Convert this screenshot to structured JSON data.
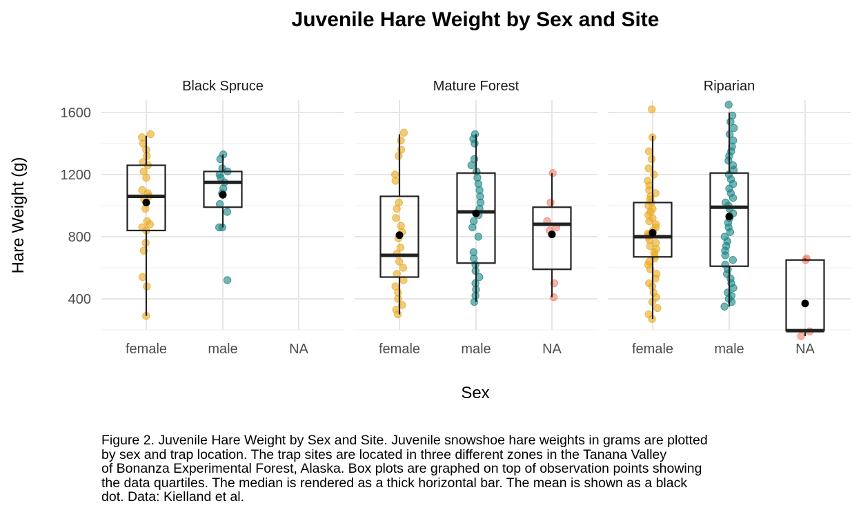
{
  "chart_data": {
    "type": "box",
    "title": "Juvenile Hare Weight by Sex and Site",
    "xlabel": "Sex",
    "ylabel": "Hare Weight (g)",
    "ylim": [
      200,
      1680
    ],
    "y_ticks": [
      400,
      800,
      1200,
      1600
    ],
    "categories": [
      "female",
      "male",
      "NA"
    ],
    "grid": true,
    "colors": {
      "female": "#E9A91F",
      "male": "#1A8484",
      "NA": "#F0806A",
      "box": "#222222",
      "mean": "#000000",
      "grid": "#E6E6E6"
    },
    "facets": [
      {
        "name": "Black Spruce",
        "groups": [
          {
            "sex": "female",
            "min": 290,
            "q1": 840,
            "median": 1060,
            "q3": 1260,
            "max": 1450,
            "mean": 1020,
            "points": [
              290,
              480,
              540,
              710,
              760,
              840,
              860,
              880,
              900,
              980,
              1040,
              1060,
              1080,
              1100,
              1180,
              1220,
              1260,
              1280,
              1320,
              1360,
              1400,
              1440,
              1460
            ]
          },
          {
            "sex": "male",
            "min": 860,
            "q1": 990,
            "median": 1150,
            "q3": 1220,
            "max": 1330,
            "mean": 1070,
            "points": [
              520,
              860,
              860,
              960,
              1010,
              1080,
              1110,
              1150,
              1180,
              1200,
              1220,
              1240,
              1300,
              1330
            ]
          },
          {
            "sex": "NA",
            "points": []
          }
        ]
      },
      {
        "name": "Mature Forest",
        "groups": [
          {
            "sex": "female",
            "min": 300,
            "q1": 540,
            "median": 680,
            "q3": 1060,
            "max": 1460,
            "mean": 810,
            "points": [
              300,
              330,
              360,
              400,
              440,
              480,
              520,
              560,
              600,
              640,
              690,
              730,
              790,
              830,
              870,
              920,
              980,
              1020,
              1160,
              1200,
              1320,
              1360,
              1420,
              1470
            ]
          },
          {
            "sex": "male",
            "min": 380,
            "q1": 630,
            "median": 960,
            "q3": 1210,
            "max": 1460,
            "mean": 950,
            "points": [
              380,
              420,
              460,
              500,
              540,
              580,
              620,
              660,
              700,
              800,
              860,
              900,
              940,
              980,
              1020,
              1060,
              1100,
              1140,
              1180,
              1220,
              1260,
              1300,
              1400,
              1430,
              1460
            ]
          },
          {
            "sex": "NA",
            "min": 410,
            "q1": 590,
            "median": 880,
            "q3": 990,
            "max": 1210,
            "mean": 815,
            "points": [
              410,
              500,
              840,
              860,
              900,
              1020,
              1210
            ]
          }
        ]
      },
      {
        "name": "Riparian",
        "groups": [
          {
            "sex": "female",
            "min": 270,
            "q1": 670,
            "median": 800,
            "q3": 1020,
            "max": 1450,
            "mean": 825,
            "points": [
              270,
              300,
              340,
              380,
              410,
              440,
              480,
              500,
              530,
              560,
              590,
              620,
              640,
              660,
              680,
              700,
              720,
              740,
              760,
              780,
              800,
              810,
              820,
              840,
              860,
              880,
              900,
              920,
              940,
              960,
              980,
              1000,
              1020,
              1040,
              1060,
              1080,
              1100,
              1130,
              1160,
              1200,
              1240,
              1300,
              1350,
              1440,
              1620
            ]
          },
          {
            "sex": "male",
            "min": 350,
            "q1": 610,
            "median": 990,
            "q3": 1210,
            "max": 1600,
            "mean": 930,
            "points": [
              350,
              380,
              400,
              420,
              440,
              470,
              500,
              530,
              560,
              590,
              620,
              650,
              680,
              710,
              740,
              770,
              800,
              830,
              860,
              890,
              920,
              950,
              980,
              1000,
              1020,
              1050,
              1080,
              1110,
              1140,
              1170,
              1200,
              1230,
              1260,
              1290,
              1320,
              1350,
              1380,
              1420,
              1460,
              1500,
              1540,
              1580,
              1650
            ]
          },
          {
            "sex": "NA",
            "min": 160,
            "q1": 195,
            "median": 195,
            "q3": 650,
            "max": 660,
            "mean": 370,
            "points": [
              160,
              190,
              650,
              660
            ]
          }
        ]
      }
    ]
  },
  "caption": {
    "lines": [
      "Figure 2. Juvenile Hare Weight by Sex and Site. Juvenile snowshoe hare weights in grams are plotted",
      "by sex and trap location. The trap sites are located in three different zones in the Tanana Valley",
      "of Bonanza Experimental Forest, Alaska. Box plots are graphed on top of observation points showing",
      "the data quartiles. The median is rendered as a thick horizontal bar. The mean is shown as a black",
      "dot. Data: Kielland et al."
    ]
  }
}
